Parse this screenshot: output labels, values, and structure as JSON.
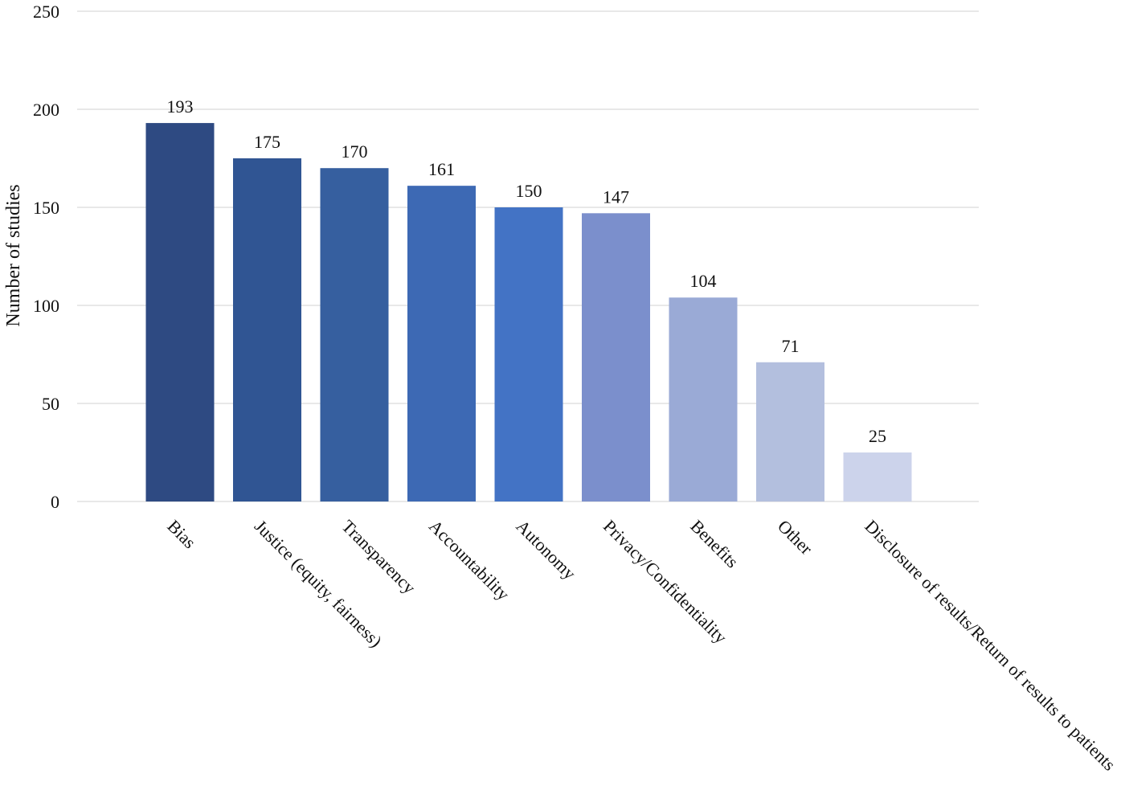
{
  "chart_data": {
    "type": "bar",
    "title": "",
    "xlabel": "",
    "ylabel": "Number of studies",
    "ylim": [
      0,
      250
    ],
    "yticks": [
      0,
      50,
      100,
      150,
      200,
      250
    ],
    "grid": true,
    "legend": "none",
    "categories": [
      "Bias",
      "Justice (equity, fairness)",
      "Transparency",
      "Accountability",
      "Autonomy",
      "Privacy/Confidentiality",
      "Benefits",
      "Other",
      "Disclosure of results/Return of results to patients"
    ],
    "values": [
      193,
      175,
      170,
      161,
      150,
      147,
      104,
      71,
      25
    ],
    "colors": [
      "#2e4a82",
      "#305593",
      "#365f9f",
      "#3d69b4",
      "#4373c5",
      "#7b8fcc",
      "#9aaad6",
      "#b3bfde",
      "#ccd3eb"
    ]
  }
}
